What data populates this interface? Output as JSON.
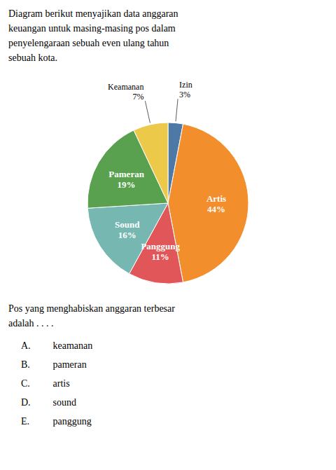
{
  "chart_data": {
    "type": "pie",
    "title": "Diagram berikut menyajikan data anggaran\nkeuangan untuk masing-masing pos dalam\npenyelengaraan sebuah even ulang tahun\nsebuah kota.",
    "categories": [
      "Izin",
      "Artis",
      "Panggung",
      "Sound",
      "Pameran",
      "Keamanan"
    ],
    "values": [
      3,
      44,
      11,
      16,
      19,
      7
    ],
    "value_labels": [
      "3%",
      "44%",
      "11%",
      "16%",
      "19%",
      "7%"
    ],
    "data_labels": true,
    "annotations": [
      "Pos yang menghabiskan anggaran terbesar\nadalah . . . .",
      "A. keamanan",
      "B. pameran",
      "C. artis",
      "D. sound",
      "E. panggung"
    ]
  }
}
